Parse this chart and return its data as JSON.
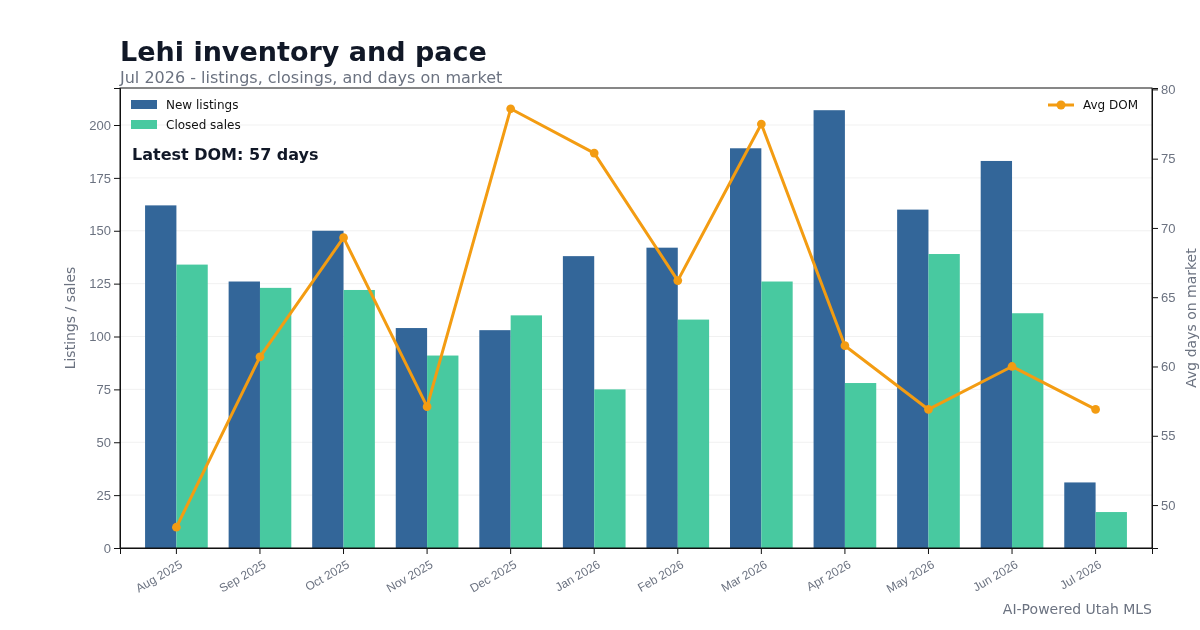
{
  "chart_data": {
    "type": "bar",
    "title": "Lehi inventory and pace",
    "subtitle": "Jul 2026 - listings, closings, and days on market",
    "ylabel": "Listings / sales",
    "y2label": "Avg days on market",
    "categories": [
      "Aug 2025",
      "Sep 2025",
      "Oct 2025",
      "Nov 2025",
      "Dec 2025",
      "Jan 2026",
      "Feb 2026",
      "Mar 2026",
      "Apr 2026",
      "May 2026",
      "Jun 2026",
      "Jul 2026"
    ],
    "series": [
      {
        "name": "New listings",
        "color": "#336699",
        "values": [
          162,
          126,
          150,
          104,
          103,
          138,
          142,
          189,
          207,
          160,
          183,
          31
        ]
      },
      {
        "name": "Closed sales",
        "color": "#48c9a0",
        "values": [
          134,
          123,
          122,
          91,
          110,
          75,
          108,
          126,
          78,
          139,
          111,
          17
        ]
      },
      {
        "name": "Avg DOM",
        "type": "line",
        "axis": "y2",
        "color": "#f39c12",
        "values": [
          48.4,
          60.7,
          69.3,
          57.1,
          78.6,
          75.4,
          66.2,
          77.5,
          61.5,
          56.9,
          60,
          56.9
        ]
      }
    ],
    "ylim": [
      0,
      217.5
    ],
    "yticks": [
      0,
      25,
      50,
      75,
      100,
      125,
      150,
      175,
      200
    ],
    "y2lim": [
      46.9,
      80.1
    ],
    "y2ticks": [
      50,
      55,
      60,
      65,
      70,
      75,
      80
    ],
    "grid": "y",
    "legend": "top",
    "marker": "circle",
    "line_style": "solid",
    "annotations": [
      "Latest DOM: 57 days",
      "AI-Powered Utah MLS"
    ]
  }
}
